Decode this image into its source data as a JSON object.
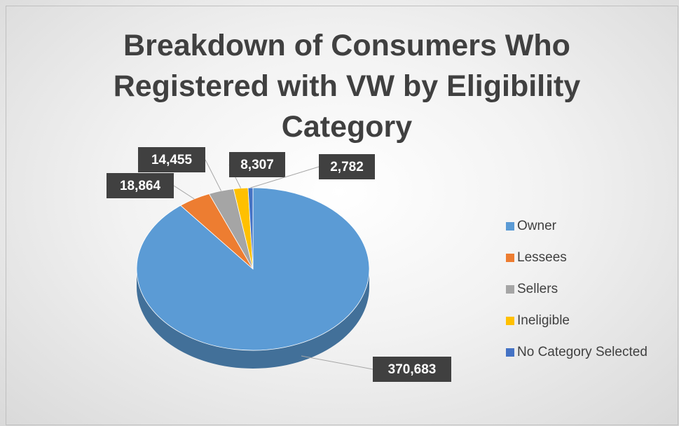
{
  "chart_data": {
    "type": "pie3d",
    "title": "Breakdown of Consumers Who Registered with VW by Eligibility Category",
    "categories": [
      "Owner",
      "Lessees",
      "Sellers",
      "Ineligible",
      "No Category Selected"
    ],
    "values": [
      370683,
      18864,
      14455,
      8307,
      2782
    ],
    "value_labels": [
      "370,683",
      "18,864",
      "14,455",
      "8,307",
      "2,782"
    ],
    "colors": [
      "#5b9bd5",
      "#ed7d31",
      "#a5a5a5",
      "#ffc000",
      "#4472c4"
    ],
    "legend": "right"
  }
}
